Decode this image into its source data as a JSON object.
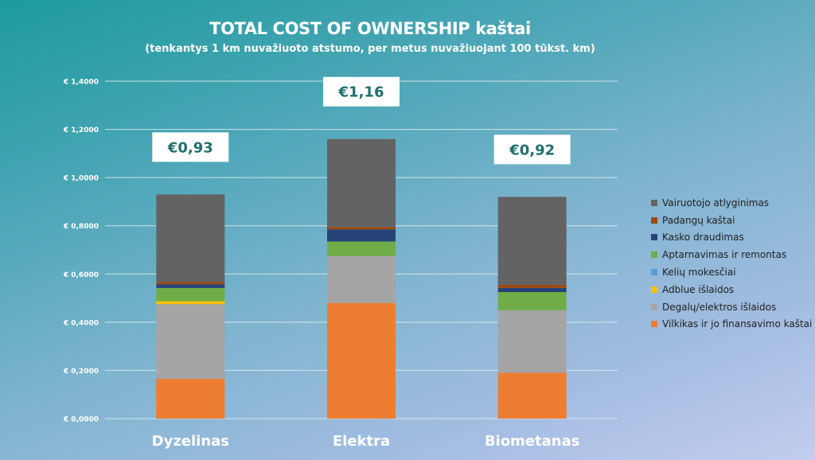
{
  "title": "TOTAL COST OF OWNERSHIP kaštai",
  "subtitle": "(tenkantys 1 km nuvažiuoto atstumo, per metus nuvažiuojant 100 tūkst. km)",
  "chart_data": {
    "type": "bar",
    "stacked": true,
    "categories": [
      "Dyzelinas",
      "Elektra",
      "Biometanas"
    ],
    "totals": [
      "€0,93",
      "€1,16",
      "€0,92"
    ],
    "ylim": [
      0,
      1.4
    ],
    "yticks": [
      0,
      0.2,
      0.4,
      0.6,
      0.8,
      1.0,
      1.2,
      1.4
    ],
    "ytick_labels": [
      "€ 0,0000",
      "€ 0,2000",
      "€ 0,4000",
      "€ 0,6000",
      "€ 0,8000",
      "€ 1,0000",
      "€ 1,2000",
      "€ 1,4000"
    ],
    "grid": true,
    "legend_position": "right",
    "series": [
      {
        "name": "Vilkikas ir jo finansavimo kaštai",
        "color": "#ed7d31",
        "values": [
          0.165,
          0.48,
          0.19
        ]
      },
      {
        "name": "Degalų/elektros išlaidos",
        "color": "#a5a5a5",
        "values": [
          0.31,
          0.195,
          0.26
        ]
      },
      {
        "name": "Adblue išlaidos",
        "color": "#ffc000",
        "values": [
          0.012,
          0,
          0
        ]
      },
      {
        "name": "Kelių mokesčiai",
        "color": "#5b9bd5",
        "values": [
          0,
          0,
          0
        ]
      },
      {
        "name": "Aptarnavimas ir remontas",
        "color": "#70ad47",
        "values": [
          0.055,
          0.06,
          0.075
        ]
      },
      {
        "name": "Kasko draudimas",
        "color": "#264478",
        "values": [
          0.015,
          0.05,
          0.017
        ]
      },
      {
        "name": "Padangų kaštai",
        "color": "#9e480e",
        "values": [
          0.01,
          0.01,
          0.013
        ]
      },
      {
        "name": "Vairuotojo atlyginimas",
        "color": "#636363",
        "values": [
          0.363,
          0.365,
          0.365
        ]
      }
    ]
  }
}
